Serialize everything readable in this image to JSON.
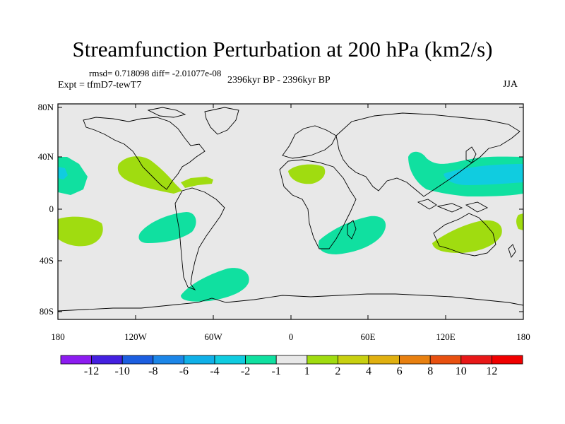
{
  "title": "Streamfunction Perturbation at 200 hPa (km2/s)",
  "stats_text": "rmsd= 0.718098  diff= -2.01077e-08",
  "experiment_text": "Expt = tfmD7-tewT7",
  "period_text": "2396kyr BP - 2396kyr BP",
  "season_text": "JJA",
  "map": {
    "projection": "cylindrical-equidistant",
    "land_fill": "#e8e8e8",
    "coastline_color": "#000000",
    "lat_labels": [
      "80N",
      "40N",
      "0",
      "40S",
      "80S"
    ],
    "lon_labels": [
      "180",
      "120W",
      "60W",
      "0",
      "60E",
      "120E",
      "180"
    ]
  },
  "colorbar": {
    "labels": [
      "-12",
      "-10",
      "-8",
      "-6",
      "-4",
      "-2",
      "-1",
      "1",
      "2",
      "4",
      "6",
      "8",
      "10",
      "12"
    ],
    "colors": [
      "#8c1cf0",
      "#4420e0",
      "#1c5ee0",
      "#1c86e8",
      "#10b0e8",
      "#10cce0",
      "#10e0a0",
      "#e8e8e8",
      "#a0dc10",
      "#c8d010",
      "#e0b010",
      "#e88010",
      "#e85010",
      "#e81818",
      "#f00000"
    ]
  },
  "anomalies": [
    {
      "name": "tropical-pacific-north",
      "sign": "positive",
      "colors": [
        "#a0dc10"
      ]
    },
    {
      "name": "east-pacific-north",
      "sign": "negative",
      "colors": [
        "#10e0a0",
        "#10cce0"
      ]
    },
    {
      "name": "west-pacific-north",
      "sign": "negative",
      "colors": [
        "#10e0a0",
        "#10cce0"
      ]
    },
    {
      "name": "central-america",
      "sign": "positive",
      "colors": [
        "#a0dc10"
      ]
    },
    {
      "name": "caribbean",
      "sign": "positive",
      "colors": [
        "#a0dc10"
      ]
    },
    {
      "name": "north-africa",
      "sign": "positive",
      "colors": [
        "#a0dc10"
      ]
    },
    {
      "name": "south-pacific",
      "sign": "positive",
      "colors": [
        "#a0dc10"
      ]
    },
    {
      "name": "south-america",
      "sign": "negative",
      "colors": [
        "#10e0a0"
      ]
    },
    {
      "name": "south-indian-ocean",
      "sign": "negative",
      "colors": [
        "#10e0a0"
      ]
    },
    {
      "name": "southern-ocean-atlantic",
      "sign": "negative",
      "colors": [
        "#10e0a0"
      ]
    },
    {
      "name": "australia",
      "sign": "positive",
      "colors": [
        "#a0dc10"
      ]
    },
    {
      "name": "south-west-pacific-edge",
      "sign": "positive",
      "colors": [
        "#a0dc10"
      ]
    }
  ]
}
